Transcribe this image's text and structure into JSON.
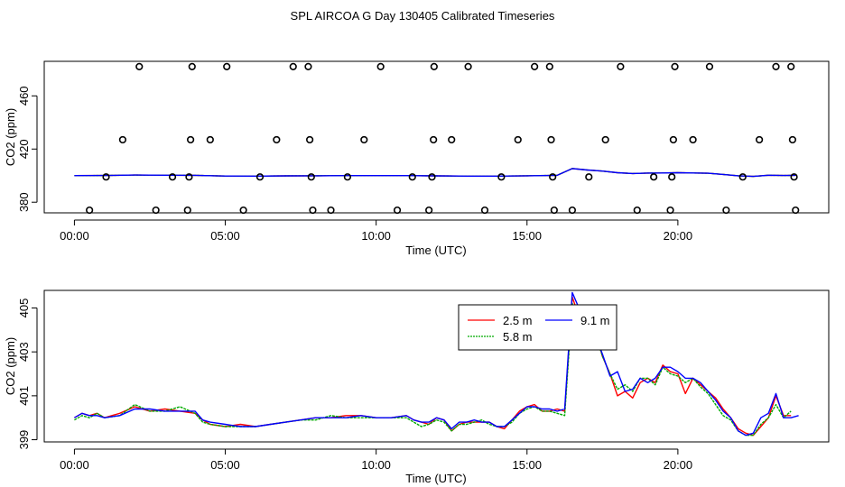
{
  "title": "SPL AIRCOA G  Day 130405  Calibrated Timeseries",
  "chart_data": [
    {
      "type": "scatter",
      "panel": "top",
      "xlabel": "Time (UTC)",
      "ylabel": "CO2 (ppm)",
      "xlim": [
        -1,
        25
      ],
      "ylim": [
        372,
        486
      ],
      "xticks": [
        0,
        5,
        10,
        15,
        20
      ],
      "xtick_labels": [
        "00:00",
        "05:00",
        "10:00",
        "15:00",
        "20:00"
      ],
      "yticks": [
        380,
        420,
        460
      ],
      "ytick_labels": [
        "380",
        "420",
        "460"
      ],
      "flag_levels": [
        374,
        399,
        427,
        482
      ],
      "flag_points": [
        [
          0.5,
          374
        ],
        [
          1.05,
          399
        ],
        [
          1.6,
          427
        ],
        [
          2.15,
          482
        ],
        [
          2.7,
          374
        ],
        [
          3.25,
          399
        ],
        [
          3.75,
          374
        ],
        [
          3.8,
          399
        ],
        [
          3.85,
          427
        ],
        [
          3.9,
          482
        ],
        [
          4.5,
          427
        ],
        [
          5.05,
          482
        ],
        [
          5.6,
          374
        ],
        [
          6.15,
          399
        ],
        [
          6.7,
          427
        ],
        [
          7.25,
          482
        ],
        [
          7.75,
          482
        ],
        [
          7.8,
          427
        ],
        [
          7.85,
          399
        ],
        [
          7.9,
          374
        ],
        [
          8.5,
          374
        ],
        [
          9.05,
          399
        ],
        [
          9.6,
          427
        ],
        [
          10.15,
          482
        ],
        [
          10.7,
          374
        ],
        [
          11.2,
          399
        ],
        [
          11.75,
          374
        ],
        [
          11.85,
          399
        ],
        [
          11.9,
          427
        ],
        [
          11.92,
          482
        ],
        [
          12.5,
          427
        ],
        [
          13.05,
          482
        ],
        [
          13.6,
          374
        ],
        [
          14.15,
          399
        ],
        [
          14.7,
          427
        ],
        [
          15.25,
          482
        ],
        [
          15.75,
          482
        ],
        [
          15.8,
          427
        ],
        [
          15.85,
          399
        ],
        [
          15.9,
          374
        ],
        [
          16.5,
          374
        ],
        [
          17.05,
          399
        ],
        [
          17.6,
          427
        ],
        [
          18.1,
          482
        ],
        [
          18.65,
          374
        ],
        [
          19.2,
          399
        ],
        [
          19.75,
          374
        ],
        [
          19.8,
          399
        ],
        [
          19.85,
          427
        ],
        [
          19.9,
          482
        ],
        [
          20.5,
          427
        ],
        [
          21.05,
          482
        ],
        [
          21.6,
          374
        ],
        [
          22.15,
          399
        ],
        [
          22.7,
          427
        ],
        [
          23.25,
          482
        ],
        [
          23.75,
          482
        ],
        [
          23.8,
          427
        ],
        [
          23.85,
          399
        ],
        [
          23.9,
          374
        ]
      ],
      "series": [
        {
          "name": "2.5 m",
          "color": "#ff0000",
          "x": [
            0,
            1,
            2,
            3,
            4,
            5,
            6,
            7,
            8,
            9,
            10,
            11,
            12,
            13,
            14,
            15,
            16,
            16.5,
            17,
            17.5,
            18,
            18.5,
            19,
            19.5,
            20,
            20.5,
            21,
            21.5,
            22,
            22.5,
            23,
            23.5,
            23.9
          ],
          "y": [
            400.0,
            400.1,
            400.4,
            400.3,
            400.2,
            399.7,
            399.6,
            399.8,
            399.9,
            400.0,
            400.0,
            400.0,
            399.8,
            399.6,
            399.6,
            399.9,
            400.2,
            405.3,
            404.2,
            403.4,
            402.2,
            401.6,
            401.9,
            402.0,
            402.2,
            402.0,
            401.8,
            400.9,
            399.9,
            399.4,
            400.3,
            400.1,
            400.2
          ]
        },
        {
          "name": "5.8 m",
          "color": "#00aa00",
          "x": [
            0,
            1,
            2,
            3,
            4,
            5,
            6,
            7,
            8,
            9,
            10,
            11,
            12,
            13,
            14,
            15,
            16,
            16.5,
            17,
            17.5,
            18,
            18.5,
            19,
            19.5,
            20,
            20.5,
            21,
            21.5,
            22,
            22.5,
            23,
            23.5,
            23.9
          ],
          "y": [
            400.0,
            400.1,
            400.4,
            400.3,
            400.2,
            399.7,
            399.6,
            399.8,
            399.9,
            400.0,
            400.0,
            400.0,
            399.8,
            399.6,
            399.6,
            399.9,
            400.2,
            405.3,
            404.2,
            403.4,
            402.2,
            401.6,
            401.9,
            402.0,
            402.2,
            402.0,
            401.8,
            400.9,
            399.9,
            399.4,
            400.3,
            400.1,
            400.2
          ]
        },
        {
          "name": "9.1 m",
          "color": "#0000ff",
          "x": [
            0,
            1,
            2,
            3,
            4,
            5,
            6,
            7,
            8,
            9,
            10,
            11,
            12,
            13,
            14,
            15,
            16,
            16.5,
            17,
            17.5,
            18,
            18.5,
            19,
            19.5,
            20,
            20.5,
            21,
            21.5,
            22,
            22.5,
            23,
            23.5,
            23.9
          ],
          "y": [
            400.0,
            400.1,
            400.4,
            400.3,
            400.2,
            399.7,
            399.6,
            399.8,
            399.9,
            400.0,
            400.0,
            400.0,
            399.8,
            399.6,
            399.6,
            399.9,
            400.2,
            405.3,
            404.2,
            403.4,
            402.2,
            401.6,
            401.9,
            402.0,
            402.2,
            402.0,
            401.8,
            400.9,
            399.9,
            399.4,
            400.3,
            400.1,
            400.2
          ]
        }
      ]
    },
    {
      "type": "line",
      "panel": "bottom",
      "xlabel": "Time (UTC)",
      "ylabel": "CO2 (ppm)",
      "xlim": [
        -1,
        25
      ],
      "ylim": [
        398.9,
        405.8
      ],
      "xticks": [
        0,
        5,
        10,
        15,
        20
      ],
      "xtick_labels": [
        "00:00",
        "05:00",
        "10:00",
        "15:00",
        "20:00"
      ],
      "yticks": [
        399,
        401,
        403,
        405
      ],
      "ytick_labels": [
        "399",
        "401",
        "403",
        "405"
      ],
      "legend": {
        "position": "top-right-center",
        "entries": [
          "2.5 m",
          "9.1 m",
          "5.8 m"
        ]
      },
      "series": [
        {
          "name": "2.5 m",
          "color": "#ff0000",
          "x": [
            0,
            0.25,
            0.5,
            0.75,
            1,
            1.5,
            2,
            2.5,
            3,
            3.5,
            4,
            4.25,
            4.5,
            5,
            5.5,
            6,
            6.5,
            7,
            7.5,
            8,
            8.5,
            9,
            9.5,
            10,
            10.5,
            11,
            11.25,
            11.5,
            11.75,
            12,
            12.25,
            12.5,
            12.75,
            13,
            13.25,
            13.5,
            13.75,
            14,
            14.25,
            14.5,
            14.75,
            15,
            15.25,
            15.5,
            15.75,
            16,
            16.25,
            16.5,
            16.75,
            17,
            17.25,
            17.5,
            17.75,
            18,
            18.25,
            18.5,
            18.75,
            19,
            19.25,
            19.5,
            19.75,
            20,
            20.25,
            20.5,
            20.75,
            21,
            21.25,
            21.5,
            21.75,
            22,
            22.25,
            22.5,
            22.75,
            23,
            23.25,
            23.5,
            23.75
          ],
          "y": [
            400.0,
            400.2,
            400.1,
            400.2,
            400.0,
            400.2,
            400.5,
            400.3,
            400.4,
            400.3,
            400.2,
            399.9,
            399.7,
            399.6,
            399.7,
            399.6,
            399.7,
            399.8,
            399.9,
            400.0,
            400.0,
            400.1,
            400.1,
            400.0,
            400.0,
            400.1,
            399.9,
            399.8,
            399.7,
            400.0,
            399.9,
            399.4,
            399.7,
            399.8,
            399.8,
            399.8,
            399.8,
            399.6,
            399.5,
            399.9,
            400.3,
            400.5,
            400.6,
            400.3,
            400.3,
            400.4,
            400.3,
            405.5,
            404.5,
            403.5,
            404.0,
            402.8,
            402.0,
            401.0,
            401.2,
            400.9,
            401.6,
            401.8,
            401.6,
            402.4,
            402.1,
            402.0,
            401.1,
            401.8,
            401.5,
            401.2,
            400.9,
            400.4,
            400.0,
            399.5,
            399.3,
            399.2,
            399.6,
            400.0,
            401.0,
            400.1,
            400.1
          ]
        },
        {
          "name": "5.8 m",
          "color": "#00aa00",
          "x": [
            0,
            0.25,
            0.5,
            0.75,
            1,
            1.5,
            2,
            2.5,
            3,
            3.5,
            4,
            4.25,
            4.5,
            5,
            5.5,
            6,
            6.5,
            7,
            7.5,
            8,
            8.5,
            9,
            9.5,
            10,
            10.5,
            11,
            11.25,
            11.5,
            11.75,
            12,
            12.25,
            12.5,
            12.75,
            13,
            13.25,
            13.5,
            13.75,
            14,
            14.25,
            14.5,
            14.75,
            15,
            15.25,
            15.5,
            15.75,
            16,
            16.25,
            16.5,
            16.75,
            17,
            17.25,
            17.5,
            17.75,
            18,
            18.25,
            18.5,
            18.75,
            19,
            19.25,
            19.5,
            19.75,
            20,
            20.25,
            20.5,
            20.75,
            21,
            21.25,
            21.5,
            21.75,
            22,
            22.25,
            22.5,
            22.75,
            23,
            23.25,
            23.5,
            23.75
          ],
          "y": [
            399.9,
            400.1,
            400.0,
            400.2,
            400.0,
            400.1,
            400.6,
            400.3,
            400.3,
            400.5,
            400.2,
            399.8,
            399.7,
            399.6,
            399.6,
            399.6,
            399.7,
            399.8,
            399.9,
            399.9,
            400.1,
            400.0,
            400.0,
            400.0,
            400.0,
            400.0,
            399.8,
            399.6,
            399.7,
            399.9,
            399.8,
            399.4,
            399.7,
            399.7,
            399.8,
            399.9,
            399.7,
            399.6,
            399.6,
            399.8,
            400.2,
            400.4,
            400.5,
            400.3,
            400.3,
            400.2,
            400.1,
            405.2,
            404.4,
            403.3,
            403.9,
            402.8,
            402.0,
            401.3,
            401.5,
            401.2,
            401.8,
            401.8,
            401.5,
            402.3,
            402.0,
            401.9,
            401.6,
            401.8,
            401.4,
            401.1,
            400.6,
            400.1,
            399.9,
            399.4,
            399.2,
            399.2,
            399.7,
            400.0,
            400.6,
            400.0,
            400.3
          ]
        },
        {
          "name": "9.1 m",
          "color": "#0000ff",
          "x": [
            0,
            0.25,
            0.5,
            0.75,
            1,
            1.5,
            2,
            2.5,
            3,
            3.5,
            4,
            4.25,
            4.5,
            5,
            5.5,
            6,
            6.5,
            7,
            7.5,
            8,
            8.5,
            9,
            9.5,
            10,
            10.5,
            11,
            11.25,
            11.5,
            11.75,
            12,
            12.25,
            12.5,
            12.75,
            13,
            13.25,
            13.5,
            13.75,
            14,
            14.25,
            14.5,
            14.75,
            15,
            15.25,
            15.5,
            15.75,
            16,
            16.25,
            16.5,
            16.75,
            17,
            17.25,
            17.5,
            17.75,
            18,
            18.25,
            18.5,
            18.75,
            19,
            19.25,
            19.5,
            19.75,
            20,
            20.25,
            20.5,
            20.75,
            21,
            21.25,
            21.5,
            21.75,
            22,
            22.25,
            22.5,
            22.75,
            23,
            23.25,
            23.5,
            23.75,
            24
          ],
          "y": [
            400.0,
            400.2,
            400.1,
            400.1,
            400.0,
            400.1,
            400.4,
            400.4,
            400.3,
            400.3,
            400.3,
            399.9,
            399.8,
            399.7,
            399.6,
            399.6,
            399.7,
            399.8,
            399.9,
            400.0,
            400.0,
            400.0,
            400.1,
            400.0,
            400.0,
            400.1,
            399.9,
            399.8,
            399.8,
            400.0,
            399.9,
            399.5,
            399.8,
            399.8,
            399.9,
            399.8,
            399.8,
            399.6,
            399.6,
            399.9,
            400.2,
            400.5,
            400.5,
            400.4,
            400.4,
            400.3,
            400.4,
            405.7,
            404.9,
            403.8,
            403.8,
            402.9,
            401.9,
            402.1,
            401.2,
            401.3,
            401.8,
            401.6,
            401.8,
            402.3,
            402.3,
            402.1,
            401.8,
            401.8,
            401.6,
            401.2,
            400.8,
            400.3,
            400.0,
            399.4,
            399.2,
            399.3,
            400.0,
            400.2,
            401.1,
            400.0,
            400.0,
            400.1
          ]
        }
      ]
    }
  ]
}
